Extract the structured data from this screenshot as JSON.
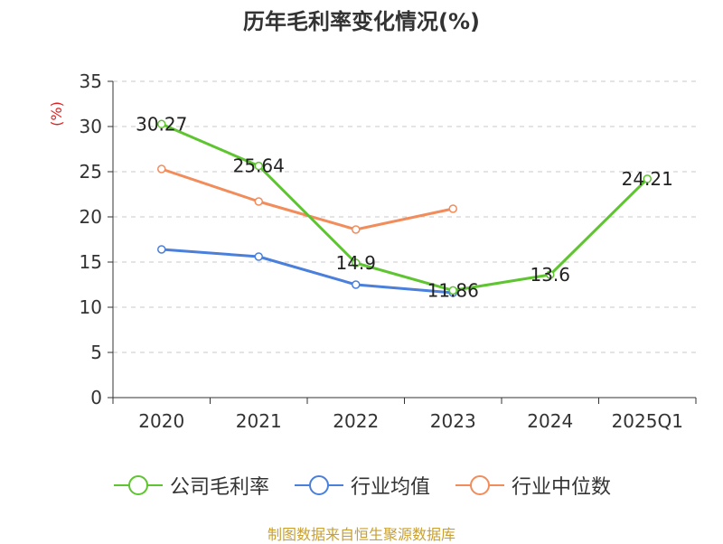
{
  "chart_data": {
    "type": "line",
    "title": "历年毛利率变化情况(%)",
    "ylabel": "(%)",
    "xlabel": "",
    "categories": [
      "2020",
      "2021",
      "2022",
      "2023",
      "2024",
      "2025Q1"
    ],
    "ylim": [
      0,
      35
    ],
    "yticks": [
      0,
      5,
      10,
      15,
      20,
      25,
      30,
      35
    ],
    "grid": "horizontal dashed",
    "legend_position": "bottom",
    "series": [
      {
        "name": "公司毛利率",
        "color": "#5ec530",
        "values": [
          30.27,
          25.64,
          14.9,
          11.86,
          13.6,
          24.21
        ],
        "labels": [
          "30.27",
          "25.64",
          "14.9",
          "11.86",
          "13.6",
          "24.21"
        ]
      },
      {
        "name": "行业均值",
        "color": "#4a7fdb",
        "values": [
          16.4,
          15.6,
          12.5,
          11.6,
          null,
          null
        ],
        "labels": []
      },
      {
        "name": "行业中位数",
        "color": "#f28c5b",
        "values": [
          25.3,
          21.7,
          18.6,
          20.9,
          null,
          null
        ],
        "labels": []
      }
    ]
  },
  "source_text": "制图数据来自恒生聚源数据库"
}
